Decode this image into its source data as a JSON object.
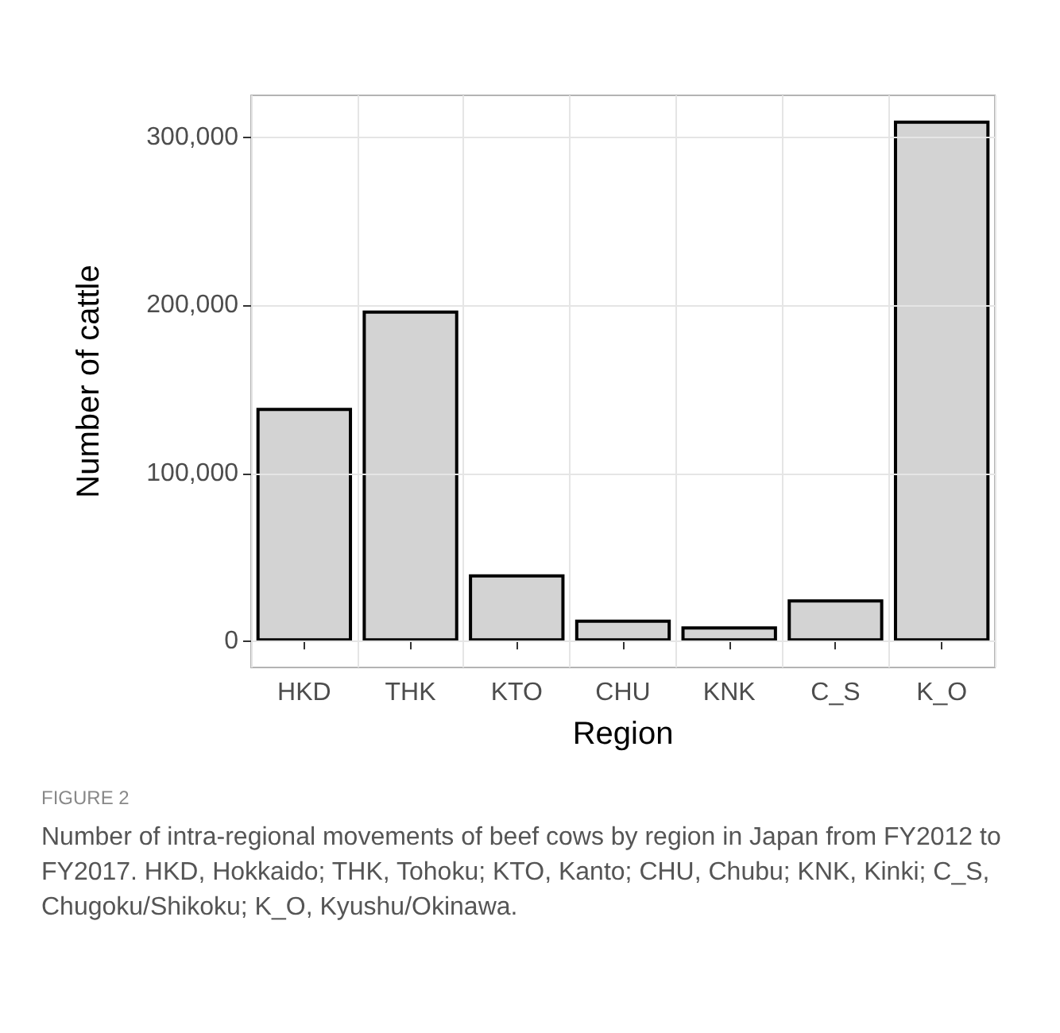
{
  "chart_data": {
    "type": "bar",
    "xlabel": "Region",
    "ylabel": "Number of cattle",
    "categories": [
      "HKD",
      "THK",
      "KTO",
      "CHU",
      "KNK",
      "C_S",
      "K_O"
    ],
    "values": [
      139000,
      197000,
      40000,
      13000,
      9000,
      25000,
      310000
    ],
    "color": "#d3d3d3",
    "ylim": [
      -15500,
      325000
    ],
    "yticks": [
      {
        "value": 0,
        "label": "0"
      },
      {
        "value": 100000,
        "label": "100,000"
      },
      {
        "value": 200000,
        "label": "200,000"
      },
      {
        "value": 300000,
        "label": "300,000"
      }
    ],
    "grid": true,
    "annotations": [
      "FIGURE 2",
      "Number of intra-regional movements of beef cows by region in Japan from FY2012 to FY2017. HKD, Hokkaido; THK, Tohoku; KTO, Kanto; CHU, Chubu; KNK, Kinki; C_S, Chugoku/Shikoku; K_O, Kyushu/Okinawa."
    ]
  }
}
